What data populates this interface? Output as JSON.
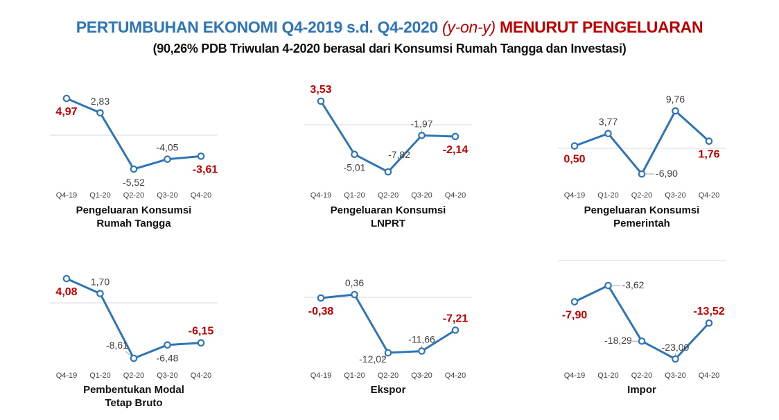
{
  "header": {
    "title_part1": "PERTUMBUHAN EKONOMI Q4-2019 s.d. Q4-2020",
    "title_part2": "(y-on-y)",
    "title_part3": "MENURUT PENGELUARAN",
    "subtitle": "(90,26% PDB Triwulan 4-2020 berasal dari Konsumsi Rumah Tangga dan Investasi)"
  },
  "colors": {
    "line": "#2e75b6",
    "highlight_label": "#c00000",
    "normal_label": "#404040",
    "axis": "#d9d9d9"
  },
  "chart_data": [
    {
      "type": "line",
      "title": "Pengeluaran Konsumsi Rumah Tangga",
      "title_lines": [
        "Pengeluaran Konsumsi",
        "Rumah Tangga"
      ],
      "categories": [
        "Q4-19",
        "Q1-20",
        "Q2-20",
        "Q3-20",
        "Q4-20"
      ],
      "values": [
        4.97,
        2.83,
        -5.52,
        -4.05,
        -3.61
      ],
      "value_labels": [
        "4,97",
        "2,83",
        "-5,52",
        "-4,05",
        "-3,61"
      ],
      "highlight": [
        0,
        4
      ],
      "label_pos": [
        "below",
        "above",
        "below",
        "above",
        "below-right"
      ],
      "leaders": []
    },
    {
      "type": "line",
      "title": "Pengeluaran Konsumsi LNPRT",
      "title_lines": [
        "Pengeluaran Konsumsi",
        "LNPRT"
      ],
      "categories": [
        "Q4-19",
        "Q1-20",
        "Q2-20",
        "Q3-20",
        "Q4-20"
      ],
      "values": [
        3.53,
        -5.01,
        -7.82,
        -1.97,
        -2.14
      ],
      "value_labels": [
        "3,53",
        "-5,01",
        "-7,82",
        "-1,97",
        "-2,14"
      ],
      "highlight": [
        0,
        4
      ],
      "label_pos": [
        "above",
        "below",
        "above-right",
        "above",
        "below"
      ],
      "leaders": [
        2,
        3
      ]
    },
    {
      "type": "line",
      "title": "Pengeluaran Konsumsi Pemerintah",
      "title_lines": [
        "Pengeluaran Konsumsi",
        "Pemerintah"
      ],
      "categories": [
        "Q4-19",
        "Q1-20",
        "Q2-20",
        "Q3-20",
        "Q4-20"
      ],
      "values": [
        0.5,
        3.77,
        -6.9,
        9.76,
        1.76
      ],
      "value_labels": [
        "0,50",
        "3,77",
        "-6,90",
        "9,76",
        "1,76"
      ],
      "highlight": [
        0,
        4
      ],
      "label_pos": [
        "below",
        "above",
        "right",
        "above",
        "below"
      ],
      "leaders": [
        2
      ]
    },
    {
      "type": "line",
      "title": "Pembentukan Modal Tetap Bruto",
      "title_lines": [
        "Pembentukan Modal",
        "Tetap Bruto"
      ],
      "categories": [
        "Q4-19",
        "Q1-20",
        "Q2-20",
        "Q3-20",
        "Q4-20"
      ],
      "values": [
        4.08,
        1.7,
        -8.61,
        -6.48,
        -6.15
      ],
      "value_labels": [
        "4,08",
        "1,70",
        "-8,61",
        "-6,48",
        "-6,15"
      ],
      "highlight": [
        0,
        4
      ],
      "label_pos": [
        "below",
        "above",
        "above-left",
        "below",
        "above"
      ],
      "leaders": [
        2
      ]
    },
    {
      "type": "line",
      "title": "Ekspor",
      "title_lines": [
        "Ekspor"
      ],
      "categories": [
        "Q4-19",
        "Q1-20",
        "Q2-20",
        "Q3-20",
        "Q4-20"
      ],
      "values": [
        -0.38,
        0.36,
        -12.02,
        -11.66,
        -7.21
      ],
      "value_labels": [
        "-0,38",
        "0,36",
        "-12,02",
        "-11,66",
        "-7,21"
      ],
      "highlight": [
        0,
        4
      ],
      "label_pos": [
        "below",
        "above",
        "below-left",
        "above",
        "above"
      ],
      "leaders": [
        2,
        3
      ]
    },
    {
      "type": "line",
      "title": "Impor",
      "title_lines": [
        "Impor"
      ],
      "categories": [
        "Q4-19",
        "Q1-20",
        "Q2-20",
        "Q3-20",
        "Q4-20"
      ],
      "values": [
        -7.9,
        -3.62,
        -18.29,
        -23.0,
        -13.52
      ],
      "value_labels": [
        "-7,90",
        "-3,62",
        "-18,29",
        "-23,00",
        "-13,52"
      ],
      "highlight": [
        0,
        4
      ],
      "label_pos": [
        "below",
        "right",
        "left",
        "above",
        "above"
      ],
      "leaders": [
        1,
        2,
        3
      ]
    }
  ]
}
